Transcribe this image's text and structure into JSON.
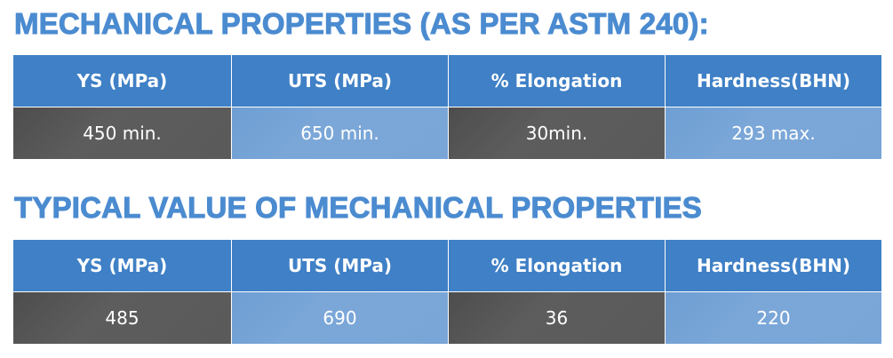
{
  "sections": [
    {
      "title": "MECHANICAL PROPERTIES (AS PER ASTM 240):",
      "table": {
        "header": [
          "YS (MPa)",
          "UTS (MPa)",
          "% Elongation",
          "Hardness(BHN)"
        ],
        "rows": [
          [
            "450 min.",
            "650 min.",
            "30min.",
            "293 max."
          ]
        ]
      }
    },
    {
      "title": "TYPICAL VALUE OF MECHANICAL PROPERTIES",
      "table": {
        "header": [
          "YS (MPa)",
          "UTS (MPa)",
          "% Elongation",
          "Hardness(BHN)"
        ],
        "rows": [
          [
            "485",
            "690",
            "36",
            "220"
          ]
        ]
      }
    }
  ]
}
